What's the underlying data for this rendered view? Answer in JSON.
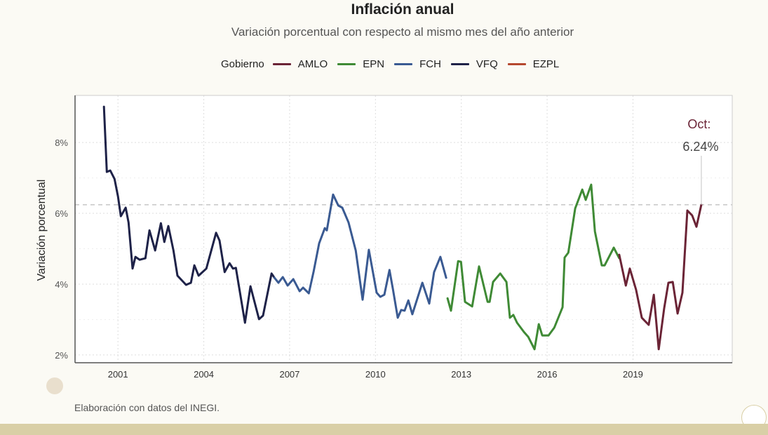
{
  "title": "Inflación anual",
  "subtitle": "Variación porcentual con respecto al mismo mes del año anterior",
  "legend": {
    "title": "Gobierno",
    "items": [
      {
        "label": "AMLO",
        "color": "#6b2436"
      },
      {
        "label": "EPN",
        "color": "#3f8a35"
      },
      {
        "label": "FCH",
        "color": "#3a5a92"
      },
      {
        "label": "VFQ",
        "color": "#1e2248"
      },
      {
        "label": "EZPL",
        "color": "#b5482f"
      }
    ]
  },
  "caption": "Elaboración con datos del INEGI.",
  "chart_data": {
    "type": "line",
    "title": "Inflación anual",
    "subtitle": "Variación porcentual con respecto al mismo mes del año anterior",
    "xlabel": "",
    "ylabel": "Variación porcentual",
    "xlim": [
      1999.5,
      2022.47
    ],
    "ylim": [
      1.78,
      9.33
    ],
    "x_ticks": [
      2001,
      2004,
      2007,
      2010,
      2013,
      2016,
      2019
    ],
    "x_tick_labels": [
      "2001",
      "2004",
      "2007",
      "2010",
      "2013",
      "2016",
      "2019"
    ],
    "y_ticks": [
      2,
      4,
      6,
      8
    ],
    "y_tick_labels": [
      "2%",
      "4%",
      "6%",
      "8%"
    ],
    "grid": true,
    "legend_position": "top",
    "reference_line": 6.24,
    "annotation": {
      "line1": "Oct:",
      "line2": "6.24%",
      "x": 2021.39,
      "y": 6.24
    },
    "series": [
      {
        "name": "VFQ",
        "color": "#1e2248",
        "points": [
          [
            2000.51,
            9.01
          ],
          [
            2000.61,
            7.17
          ],
          [
            2000.73,
            7.21
          ],
          [
            2000.88,
            6.97
          ],
          [
            2001.0,
            6.48
          ],
          [
            2001.1,
            5.92
          ],
          [
            2001.27,
            6.16
          ],
          [
            2001.37,
            5.74
          ],
          [
            2001.51,
            4.44
          ],
          [
            2001.61,
            4.77
          ],
          [
            2001.76,
            4.69
          ],
          [
            2001.96,
            4.73
          ],
          [
            2002.1,
            5.52
          ],
          [
            2002.3,
            4.95
          ],
          [
            2002.5,
            5.72
          ],
          [
            2002.62,
            5.19
          ],
          [
            2002.76,
            5.64
          ],
          [
            2002.94,
            4.95
          ],
          [
            2003.08,
            4.24
          ],
          [
            2003.38,
            3.98
          ],
          [
            2003.55,
            4.04
          ],
          [
            2003.67,
            4.53
          ],
          [
            2003.82,
            4.24
          ],
          [
            2004.09,
            4.44
          ],
          [
            2004.43,
            5.45
          ],
          [
            2004.55,
            5.23
          ],
          [
            2004.73,
            4.34
          ],
          [
            2004.9,
            4.59
          ],
          [
            2005.02,
            4.44
          ],
          [
            2005.12,
            4.46
          ],
          [
            2005.44,
            2.91
          ],
          [
            2005.63,
            3.94
          ],
          [
            2005.93,
            3.01
          ],
          [
            2006.07,
            3.11
          ],
          [
            2006.37,
            4.3
          ],
          [
            2006.47,
            4.18
          ]
        ]
      },
      {
        "name": "FCH",
        "color": "#3a5a92",
        "points": [
          [
            2006.47,
            4.18
          ],
          [
            2006.61,
            4.04
          ],
          [
            2006.76,
            4.2
          ],
          [
            2006.93,
            3.96
          ],
          [
            2007.13,
            4.14
          ],
          [
            2007.35,
            3.8
          ],
          [
            2007.47,
            3.9
          ],
          [
            2007.67,
            3.74
          ],
          [
            2007.84,
            4.36
          ],
          [
            2008.03,
            5.15
          ],
          [
            2008.23,
            5.58
          ],
          [
            2008.3,
            5.52
          ],
          [
            2008.52,
            6.53
          ],
          [
            2008.7,
            6.22
          ],
          [
            2008.84,
            6.16
          ],
          [
            2009.06,
            5.74
          ],
          [
            2009.31,
            4.95
          ],
          [
            2009.55,
            3.56
          ],
          [
            2009.77,
            4.97
          ],
          [
            2010.04,
            3.76
          ],
          [
            2010.17,
            3.64
          ],
          [
            2010.31,
            3.7
          ],
          [
            2010.49,
            4.4
          ],
          [
            2010.61,
            3.86
          ],
          [
            2010.78,
            3.05
          ],
          [
            2010.9,
            3.27
          ],
          [
            2011.02,
            3.25
          ],
          [
            2011.15,
            3.54
          ],
          [
            2011.29,
            3.15
          ],
          [
            2011.64,
            4.04
          ],
          [
            2011.88,
            3.45
          ],
          [
            2012.05,
            4.34
          ],
          [
            2012.27,
            4.77
          ],
          [
            2012.47,
            4.18
          ]
        ]
      },
      {
        "name": "EPN",
        "color": "#3f8a35",
        "points": [
          [
            2012.52,
            3.6
          ],
          [
            2012.64,
            3.25
          ],
          [
            2012.89,
            4.65
          ],
          [
            2012.99,
            4.63
          ],
          [
            2013.13,
            3.5
          ],
          [
            2013.38,
            3.37
          ],
          [
            2013.62,
            4.5
          ],
          [
            2013.92,
            3.5
          ],
          [
            2013.99,
            3.5
          ],
          [
            2014.11,
            4.06
          ],
          [
            2014.36,
            4.3
          ],
          [
            2014.58,
            4.06
          ],
          [
            2014.7,
            3.05
          ],
          [
            2014.82,
            3.13
          ],
          [
            2014.95,
            2.91
          ],
          [
            2015.19,
            2.65
          ],
          [
            2015.34,
            2.51
          ],
          [
            2015.56,
            2.16
          ],
          [
            2015.71,
            2.87
          ],
          [
            2015.83,
            2.55
          ],
          [
            2016.05,
            2.55
          ],
          [
            2016.25,
            2.77
          ],
          [
            2016.54,
            3.35
          ],
          [
            2016.61,
            4.75
          ],
          [
            2016.74,
            4.89
          ],
          [
            2016.98,
            6.14
          ],
          [
            2017.23,
            6.67
          ],
          [
            2017.35,
            6.38
          ],
          [
            2017.54,
            6.81
          ],
          [
            2017.67,
            5.49
          ],
          [
            2017.91,
            4.53
          ],
          [
            2018.01,
            4.53
          ],
          [
            2018.33,
            5.03
          ],
          [
            2018.52,
            4.73
          ]
        ]
      },
      {
        "name": "AMLO",
        "color": "#6b2436",
        "points": [
          [
            2018.52,
            4.83
          ],
          [
            2018.75,
            3.96
          ],
          [
            2018.89,
            4.44
          ],
          [
            2019.11,
            3.84
          ],
          [
            2019.31,
            3.05
          ],
          [
            2019.55,
            2.85
          ],
          [
            2019.73,
            3.7
          ],
          [
            2019.9,
            2.16
          ],
          [
            2020.09,
            3.31
          ],
          [
            2020.24,
            4.04
          ],
          [
            2020.39,
            4.06
          ],
          [
            2020.56,
            3.17
          ],
          [
            2020.73,
            3.76
          ],
          [
            2020.9,
            6.08
          ],
          [
            2021.07,
            5.94
          ],
          [
            2021.22,
            5.62
          ],
          [
            2021.39,
            6.24
          ]
        ]
      }
    ]
  }
}
